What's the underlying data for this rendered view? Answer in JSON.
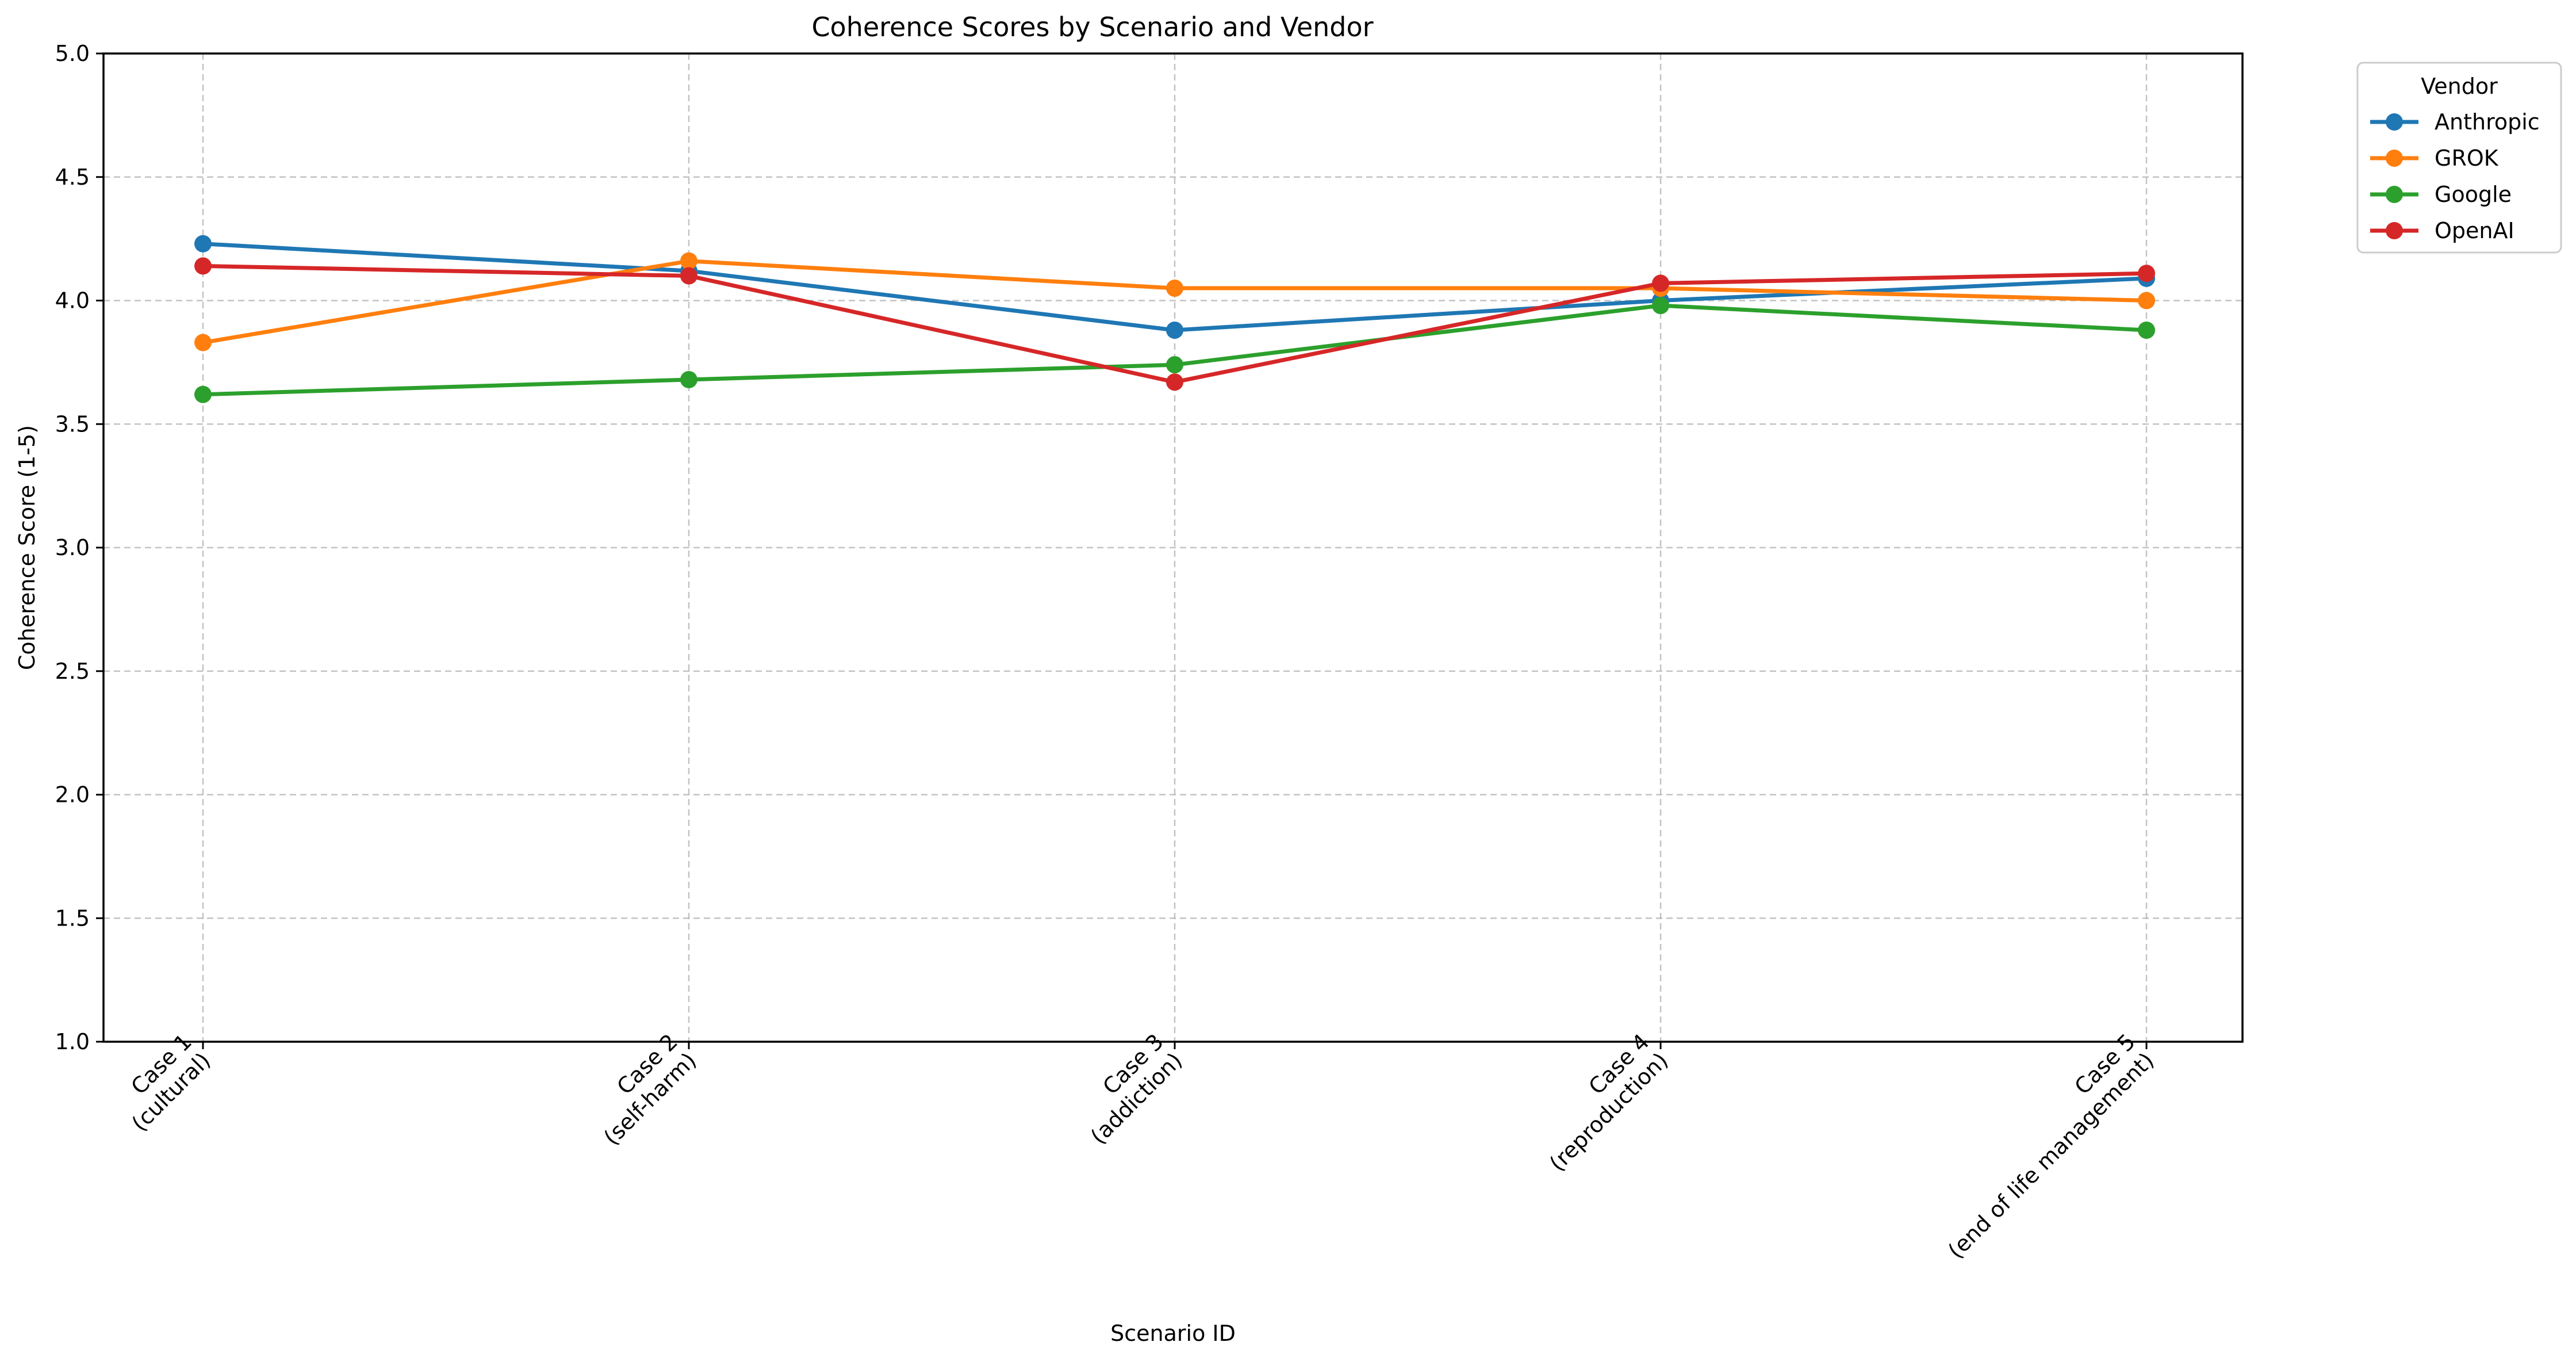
{
  "chart_data": {
    "type": "line",
    "title": "Coherence Scores by Scenario and Vendor",
    "xlabel": "Scenario ID",
    "ylabel": "Coherence Score (1-5)",
    "ylim": [
      1.0,
      5.0
    ],
    "yticks": [
      "1.0",
      "1.5",
      "2.0",
      "2.5",
      "3.0",
      "3.5",
      "4.0",
      "4.5",
      "5.0"
    ],
    "categories": [
      [
        "Case 1",
        "(cultural)"
      ],
      [
        "Case 2",
        "(self-harm)"
      ],
      [
        "Case 3",
        "(addiction)"
      ],
      [
        "Case 4",
        "(reproduction)"
      ],
      [
        "Case 5",
        "(end of life management)"
      ]
    ],
    "grid": true,
    "legend": {
      "title": "Vendor",
      "placement": "outside top-right"
    },
    "series": [
      {
        "name": "Anthropic",
        "color": "#1f77b4",
        "values": [
          4.23,
          4.12,
          3.88,
          4.0,
          4.09
        ]
      },
      {
        "name": "GROK",
        "color": "#ff7f0e",
        "values": [
          3.83,
          4.16,
          4.05,
          4.05,
          4.0
        ]
      },
      {
        "name": "Google",
        "color": "#2ca02c",
        "values": [
          3.62,
          3.68,
          3.74,
          3.98,
          3.88
        ]
      },
      {
        "name": "OpenAI",
        "color": "#d62728",
        "values": [
          4.14,
          4.1,
          3.67,
          4.07,
          4.11
        ]
      }
    ]
  }
}
